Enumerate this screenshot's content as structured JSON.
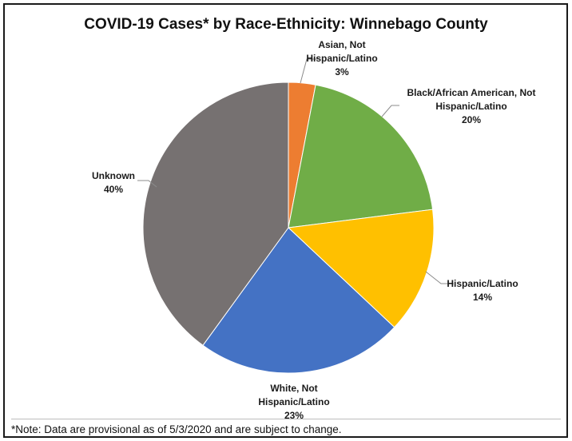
{
  "chart_data": {
    "type": "pie",
    "title": "COVID-19 Cases* by Race-Ethnicity: Winnebago County",
    "note": "*Note: Data are provisional as of 5/3/2020 and are subject to change.",
    "slices": [
      {
        "label_lines": [
          "Asian, Not",
          "Hispanic/Latino"
        ],
        "value": 3,
        "value_text": "3%",
        "color": "#ED7D31"
      },
      {
        "label_lines": [
          "Black/African American, Not",
          "Hispanic/Latino"
        ],
        "value": 20,
        "value_text": "20%",
        "color": "#70AD47"
      },
      {
        "label_lines": [
          "Hispanic/Latino"
        ],
        "value": 14,
        "value_text": "14%",
        "color": "#FFC000"
      },
      {
        "label_lines": [
          "White, Not",
          "Hispanic/Latino"
        ],
        "value": 23,
        "value_text": "23%",
        "color": "#4472C4"
      },
      {
        "label_lines": [
          "Unknown"
        ],
        "value": 40,
        "value_text": "40%",
        "color": "#767171"
      }
    ]
  }
}
